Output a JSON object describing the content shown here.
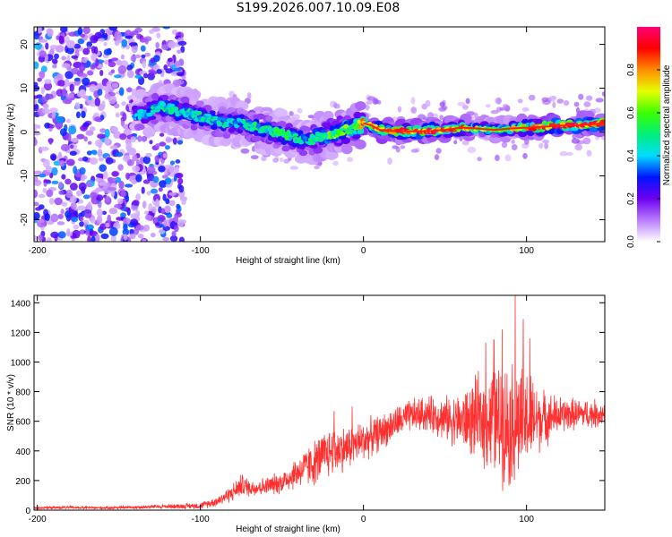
{
  "figure": {
    "title": "S199.2026.007.10.09.E08"
  },
  "chart_data": [
    {
      "type": "heatmap",
      "title": "S199.2026.007.10.09.E08",
      "xlabel": "Height of straight line (km)",
      "ylabel": "Frequency (Hz)",
      "xlim": [
        -202,
        148
      ],
      "ylim": [
        -25,
        24
      ],
      "x_ticks": [
        -200,
        -100,
        0,
        100
      ],
      "x_tick_labels": [
        "-200",
        "-100",
        "0",
        "100"
      ],
      "y_ticks": [
        -20,
        -10,
        0,
        10,
        20
      ],
      "y_tick_labels": [
        "-20",
        "-10",
        "0",
        "10",
        "20"
      ],
      "colorbar": {
        "label": "Normalized spectral amplitude",
        "range": [
          0,
          1
        ],
        "ticks": [
          0,
          0.2,
          0.4,
          0.6,
          0.8
        ],
        "tick_labels": [
          "0.0",
          "0.2",
          "0.4",
          "0.6",
          "0.8"
        ]
      },
      "ridge": {
        "x": [
          -135,
          -125,
          -115,
          -105,
          -95,
          -85,
          -75,
          -65,
          -55,
          -45,
          -35,
          -25,
          -15,
          -5,
          0,
          5,
          10,
          20,
          30,
          40,
          50,
          60,
          70,
          80,
          90,
          100,
          110,
          120,
          130,
          140,
          148
        ],
        "freq": [
          4,
          6,
          5,
          4,
          3,
          2,
          2,
          1,
          0,
          -1,
          -2,
          -1,
          0,
          1,
          2,
          1.5,
          0.5,
          0.2,
          0.2,
          0.2,
          0.5,
          1,
          0.8,
          0.5,
          0.8,
          1,
          1.2,
          1.5,
          1.5,
          1.8,
          2
        ],
        "amplitude": [
          0.35,
          0.45,
          0.45,
          0.4,
          0.45,
          0.4,
          0.4,
          0.45,
          0.45,
          0.45,
          0.4,
          0.5,
          0.55,
          0.6,
          0.7,
          0.75,
          0.85,
          0.85,
          0.85,
          0.85,
          0.8,
          0.75,
          0.6,
          0.5,
          0.6,
          0.75,
          0.9,
          0.9,
          0.9,
          0.9,
          0.9
        ]
      }
    },
    {
      "type": "line",
      "xlabel": "Height of straight line (km)",
      "ylabel": "SNR (10 * v/v)",
      "xlim": [
        -202,
        148
      ],
      "ylim": [
        0,
        1450
      ],
      "x_ticks": [
        -200,
        -100,
        0,
        100
      ],
      "x_tick_labels": [
        "-200",
        "-100",
        "0",
        "100"
      ],
      "y_ticks": [
        0,
        200,
        400,
        600,
        800,
        1000,
        1200,
        1400
      ],
      "y_tick_labels": [
        "0",
        "200",
        "400",
        "600",
        "800",
        "1000",
        "1200",
        "1400"
      ],
      "series": [
        {
          "name": "SNR",
          "color": "#ff3030",
          "envelope": {
            "x": [
              -202,
              -180,
              -160,
              -140,
              -120,
              -100,
              -90,
              -80,
              -75,
              -70,
              -60,
              -50,
              -40,
              -30,
              -20,
              -10,
              0,
              10,
              20,
              30,
              40,
              50,
              60,
              70,
              80,
              90,
              100,
              110,
              120,
              130,
              148
            ],
            "center": [
              15,
              18,
              15,
              20,
              25,
              30,
              60,
              120,
              170,
              150,
              160,
              190,
              260,
              320,
              400,
              420,
              470,
              520,
              590,
              640,
              650,
              620,
              600,
              620,
              600,
              580,
              600,
              620,
              640,
              650,
              650
            ],
            "spread": [
              12,
              12,
              12,
              15,
              18,
              25,
              40,
              70,
              90,
              70,
              70,
              90,
              130,
              180,
              200,
              170,
              160,
              140,
              130,
              130,
              140,
              170,
              220,
              330,
              430,
              500,
              420,
              220,
              150,
              120,
              110
            ]
          },
          "peaks": [
            {
              "x": -18,
              "value": 670
            },
            {
              "x": -7,
              "value": 700
            },
            {
              "x": 75,
              "value": 1130
            },
            {
              "x": 80,
              "value": 1150
            },
            {
              "x": 85,
              "value": 1220
            },
            {
              "x": 93,
              "value": 1450
            },
            {
              "x": 98,
              "value": 1290
            },
            {
              "x": 102,
              "value": 1160
            }
          ]
        }
      ]
    }
  ]
}
